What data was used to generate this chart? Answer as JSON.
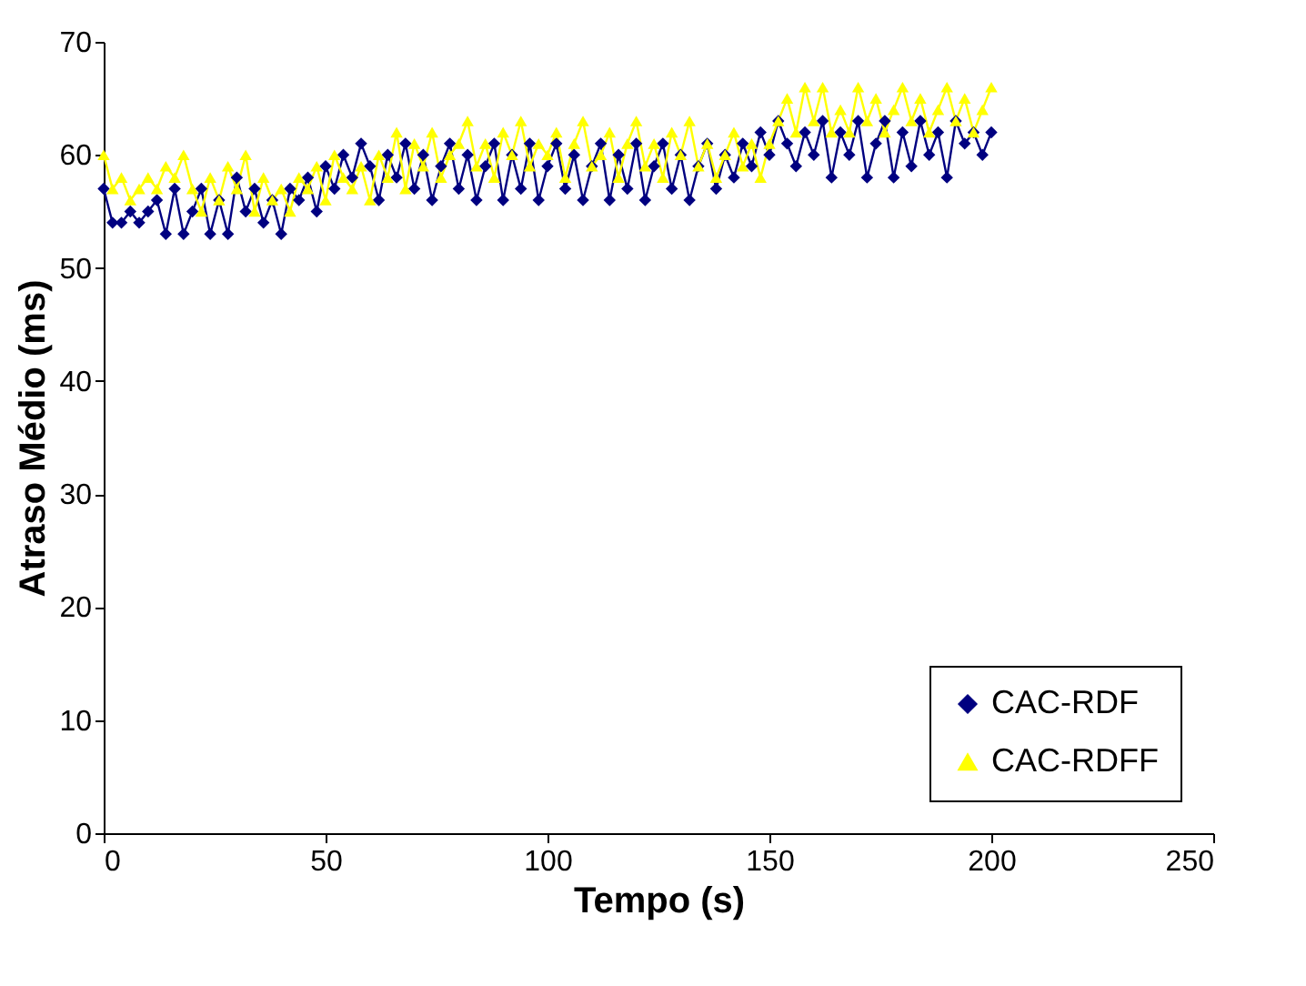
{
  "chart_data": {
    "type": "line",
    "xlabel": "Tempo (s)",
    "ylabel": "Atraso Médio (ms)",
    "x": [
      0,
      2,
      4,
      6,
      8,
      10,
      12,
      14,
      16,
      18,
      20,
      22,
      24,
      26,
      28,
      30,
      32,
      34,
      36,
      38,
      40,
      42,
      44,
      46,
      48,
      50,
      52,
      54,
      56,
      58,
      60,
      62,
      64,
      66,
      68,
      70,
      72,
      74,
      76,
      78,
      80,
      82,
      84,
      86,
      88,
      90,
      92,
      94,
      96,
      98,
      100,
      102,
      104,
      106,
      108,
      110,
      112,
      114,
      116,
      118,
      120,
      122,
      124,
      126,
      128,
      130,
      132,
      134,
      136,
      138,
      140,
      142,
      144,
      146,
      148,
      150,
      152,
      154,
      156,
      158,
      160,
      162,
      164,
      166,
      168,
      170,
      172,
      174,
      176,
      178,
      180,
      182,
      184,
      186,
      188,
      190,
      192,
      194,
      196,
      198,
      200
    ],
    "series": [
      {
        "name": "CAC-RDF",
        "color": "#000080",
        "marker": "diamond",
        "values": [
          57,
          54,
          54,
          55,
          54,
          55,
          56,
          53,
          57,
          53,
          55,
          57,
          53,
          56,
          53,
          58,
          55,
          57,
          54,
          56,
          53,
          57,
          56,
          58,
          55,
          59,
          57,
          60,
          58,
          61,
          59,
          56,
          60,
          58,
          61,
          57,
          60,
          56,
          59,
          61,
          57,
          60,
          56,
          59,
          61,
          56,
          60,
          57,
          61,
          56,
          59,
          61,
          57,
          60,
          56,
          59,
          61,
          56,
          60,
          57,
          61,
          56,
          59,
          61,
          57,
          60,
          56,
          59,
          61,
          57,
          60,
          58,
          61,
          59,
          62,
          60,
          63,
          61,
          59,
          62,
          60,
          63,
          58,
          62,
          60,
          63,
          58,
          61,
          63,
          58,
          62,
          59,
          63,
          60,
          62,
          58,
          63,
          61,
          62,
          60,
          62
        ]
      },
      {
        "name": "CAC-RDFF",
        "color": "#ffff00",
        "marker": "triangle",
        "values": [
          60,
          57,
          58,
          56,
          57,
          58,
          57,
          59,
          58,
          60,
          57,
          55,
          58,
          56,
          59,
          57,
          60,
          55,
          58,
          56,
          57,
          55,
          58,
          57,
          59,
          56,
          60,
          58,
          57,
          59,
          56,
          60,
          58,
          62,
          57,
          61,
          59,
          62,
          58,
          60,
          61,
          63,
          59,
          61,
          58,
          62,
          60,
          63,
          59,
          61,
          60,
          62,
          58,
          61,
          63,
          59,
          60,
          62,
          58,
          61,
          63,
          59,
          61,
          58,
          62,
          60,
          63,
          59,
          61,
          58,
          60,
          62,
          59,
          61,
          58,
          61,
          63,
          65,
          62,
          66,
          63,
          66,
          62,
          64,
          62,
          66,
          63,
          65,
          62,
          64,
          66,
          63,
          65,
          62,
          64,
          66,
          63,
          65,
          62,
          64,
          66
        ]
      }
    ],
    "xlim": [
      0,
      250
    ],
    "xticks": [
      0,
      50,
      100,
      150,
      200,
      250
    ],
    "ylim": [
      0,
      70
    ],
    "yticks": [
      0,
      10,
      20,
      30,
      40,
      50,
      60,
      70
    ],
    "grid": false,
    "legend": "bottom right",
    "line_style": "solid"
  }
}
